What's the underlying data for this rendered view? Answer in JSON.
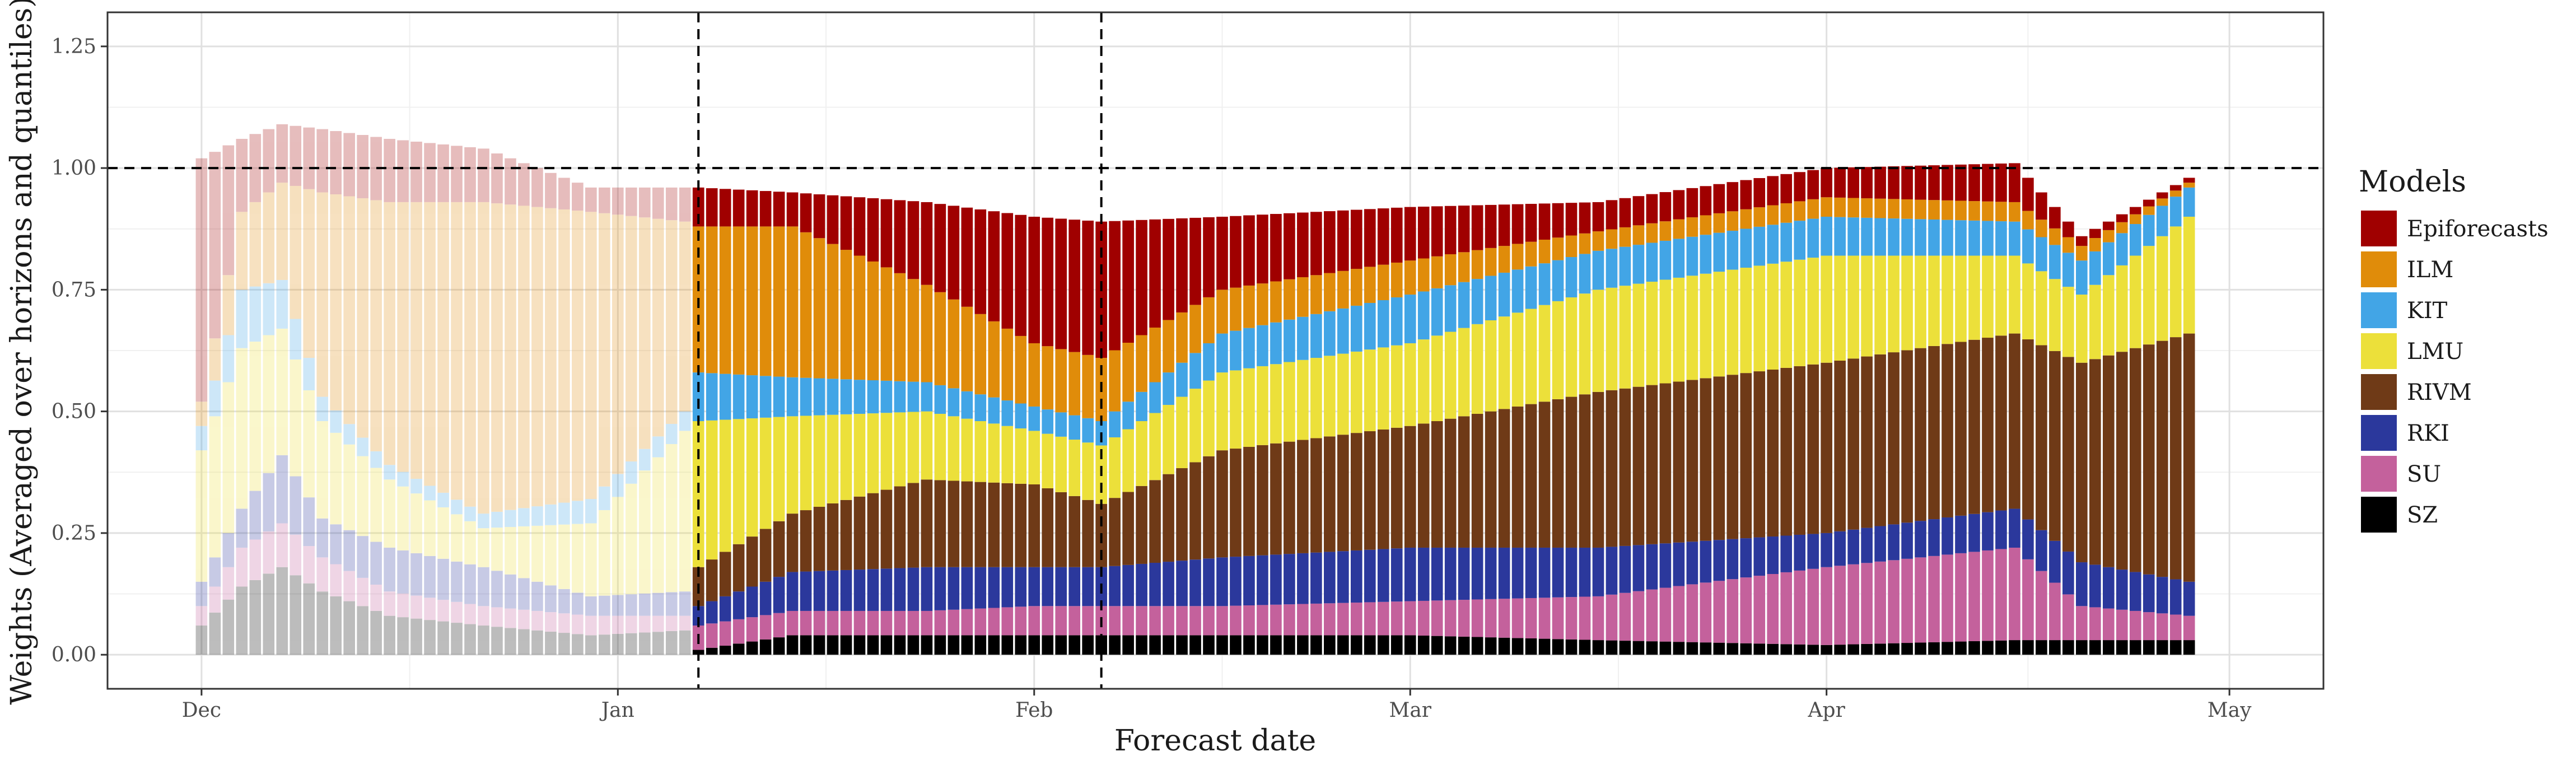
{
  "chart_data": {
    "type": "bar",
    "stacked": true,
    "xlabel": "Forecast date",
    "ylabel": "Weights (Averaged over horizons and quantiles)",
    "ylim": [
      -0.07,
      1.32
    ],
    "yticks": [
      0.0,
      0.25,
      0.5,
      0.75,
      1.0,
      1.25
    ],
    "ytick_labels": [
      "0.00",
      "0.25",
      "0.50",
      "0.75",
      "1.00",
      "1.25"
    ],
    "xlim": [
      "2020-11-24",
      "2021-05-08"
    ],
    "xticks": [
      {
        "date": "2020-12-01",
        "label": "Dec"
      },
      {
        "date": "2021-01-01",
        "label": "Jan"
      },
      {
        "date": "2021-02-01",
        "label": "Feb"
      },
      {
        "date": "2021-03-01",
        "label": "Mar"
      },
      {
        "date": "2021-04-01",
        "label": "Apr"
      },
      {
        "date": "2021-05-01",
        "label": "May"
      }
    ],
    "hline": 1.0,
    "vlines": [
      "2021-01-07",
      "2021-02-06"
    ],
    "faded_before": "2021-01-07",
    "grid": true,
    "legend_title": "Models",
    "legend_position": "right",
    "models": [
      "Epiforecasts",
      "ILM",
      "KIT",
      "LMU",
      "RIVM",
      "RKI",
      "SU",
      "SZ"
    ],
    "colors": {
      "Epiforecasts": "#a00000",
      "ILM": "#e08c0a",
      "KIT": "#42a5e6",
      "LMU": "#ece03a",
      "RIVM": "#6f3a17",
      "RKI": "#2b389c",
      "SU": "#c4619c",
      "SZ": "#000000"
    },
    "anchors": [
      {
        "date": "2020-12-01",
        "SZ": 0.06,
        "SU": 0.04,
        "RKI": 0.05,
        "RIVM": 0.0,
        "LMU": 0.27,
        "KIT": 0.05,
        "ILM": 0.05,
        "Epiforecasts": 0.5
      },
      {
        "date": "2020-12-04",
        "SZ": 0.14,
        "SU": 0.08,
        "RKI": 0.08,
        "RIVM": 0.0,
        "LMU": 0.33,
        "KIT": 0.12,
        "ILM": 0.16,
        "Epiforecasts": 0.15
      },
      {
        "date": "2020-12-07",
        "SZ": 0.18,
        "SU": 0.09,
        "RKI": 0.14,
        "RIVM": 0.0,
        "LMU": 0.26,
        "KIT": 0.1,
        "ILM": 0.2,
        "Epiforecasts": 0.12
      },
      {
        "date": "2020-12-10",
        "SZ": 0.13,
        "SU": 0.07,
        "RKI": 0.08,
        "RIVM": 0.0,
        "LMU": 0.2,
        "KIT": 0.05,
        "ILM": 0.42,
        "Epiforecasts": 0.13
      },
      {
        "date": "2020-12-15",
        "SZ": 0.08,
        "SU": 0.05,
        "RKI": 0.09,
        "RIVM": 0.0,
        "LMU": 0.14,
        "KIT": 0.03,
        "ILM": 0.54,
        "Epiforecasts": 0.13
      },
      {
        "date": "2020-12-22",
        "SZ": 0.06,
        "SU": 0.04,
        "RKI": 0.08,
        "RIVM": 0.0,
        "LMU": 0.08,
        "KIT": 0.03,
        "ILM": 0.64,
        "Epiforecasts": 0.11
      },
      {
        "date": "2020-12-30",
        "SZ": 0.04,
        "SU": 0.04,
        "RKI": 0.04,
        "RIVM": 0.0,
        "LMU": 0.15,
        "KIT": 0.05,
        "ILM": 0.59,
        "Epiforecasts": 0.05
      },
      {
        "date": "2021-01-06",
        "SZ": 0.05,
        "SU": 0.03,
        "RKI": 0.05,
        "RIVM": 0.0,
        "LMU": 0.33,
        "KIT": 0.04,
        "ILM": 0.39,
        "Epiforecasts": 0.07
      },
      {
        "date": "2021-01-07",
        "SZ": 0.01,
        "SU": 0.05,
        "RKI": 0.04,
        "RIVM": 0.08,
        "LMU": 0.3,
        "KIT": 0.1,
        "ILM": 0.3,
        "Epiforecasts": 0.08
      },
      {
        "date": "2021-01-14",
        "SZ": 0.04,
        "SU": 0.05,
        "RKI": 0.08,
        "RIVM": 0.12,
        "LMU": 0.2,
        "KIT": 0.08,
        "ILM": 0.31,
        "Epiforecasts": 0.07
      },
      {
        "date": "2021-01-24",
        "SZ": 0.04,
        "SU": 0.05,
        "RKI": 0.09,
        "RIVM": 0.18,
        "LMU": 0.14,
        "KIT": 0.06,
        "ILM": 0.2,
        "Epiforecasts": 0.17
      },
      {
        "date": "2021-02-01",
        "SZ": 0.04,
        "SU": 0.06,
        "RKI": 0.08,
        "RIVM": 0.17,
        "LMU": 0.11,
        "KIT": 0.05,
        "ILM": 0.13,
        "Epiforecasts": 0.26
      },
      {
        "date": "2021-02-06",
        "SZ": 0.04,
        "SU": 0.06,
        "RKI": 0.08,
        "RIVM": 0.13,
        "LMU": 0.12,
        "KIT": 0.05,
        "ILM": 0.13,
        "Epiforecasts": 0.28
      },
      {
        "date": "2021-02-15",
        "SZ": 0.04,
        "SU": 0.06,
        "RKI": 0.1,
        "RIVM": 0.22,
        "LMU": 0.16,
        "KIT": 0.08,
        "ILM": 0.09,
        "Epiforecasts": 0.15
      },
      {
        "date": "2021-03-01",
        "SZ": 0.04,
        "SU": 0.07,
        "RKI": 0.11,
        "RIVM": 0.25,
        "LMU": 0.17,
        "KIT": 0.1,
        "ILM": 0.07,
        "Epiforecasts": 0.11
      },
      {
        "date": "2021-03-15",
        "SZ": 0.03,
        "SU": 0.09,
        "RKI": 0.1,
        "RIVM": 0.32,
        "LMU": 0.21,
        "KIT": 0.08,
        "ILM": 0.04,
        "Epiforecasts": 0.06
      },
      {
        "date": "2021-04-01",
        "SZ": 0.02,
        "SU": 0.16,
        "RKI": 0.07,
        "RIVM": 0.35,
        "LMU": 0.22,
        "KIT": 0.08,
        "ILM": 0.04,
        "Epiforecasts": 0.06
      },
      {
        "date": "2021-04-15",
        "SZ": 0.03,
        "SU": 0.19,
        "RKI": 0.08,
        "RIVM": 0.36,
        "LMU": 0.16,
        "KIT": 0.07,
        "ILM": 0.04,
        "Epiforecasts": 0.08
      },
      {
        "date": "2021-04-20",
        "SZ": 0.03,
        "SU": 0.07,
        "RKI": 0.09,
        "RIVM": 0.41,
        "LMU": 0.14,
        "KIT": 0.07,
        "ILM": 0.03,
        "Epiforecasts": 0.02
      },
      {
        "date": "2021-04-28",
        "SZ": 0.03,
        "SU": 0.05,
        "RKI": 0.07,
        "RIVM": 0.51,
        "LMU": 0.24,
        "KIT": 0.06,
        "ILM": 0.01,
        "Epiforecasts": 0.01
      }
    ]
  }
}
